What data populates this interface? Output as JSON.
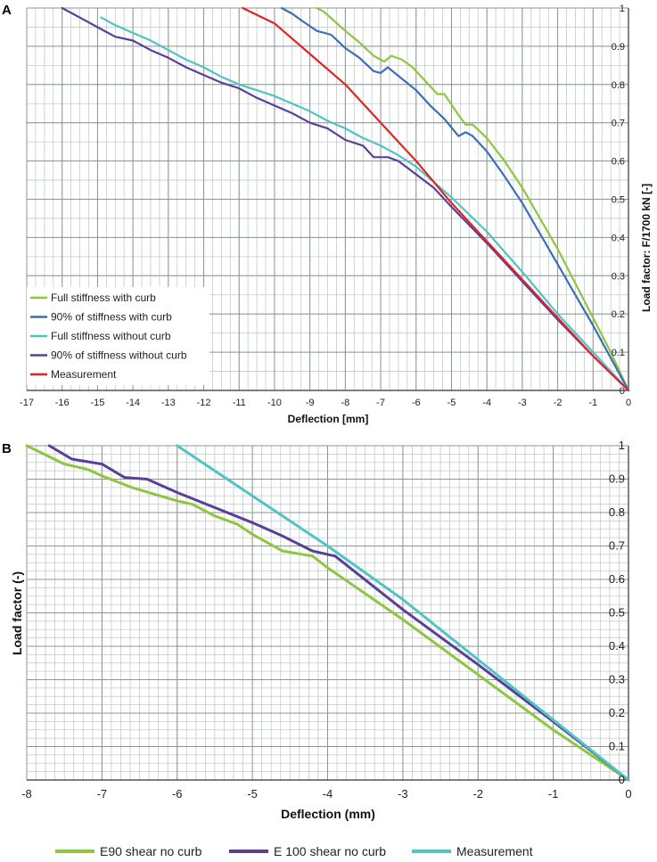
{
  "chart_data": [
    {
      "panel": "A",
      "type": "line",
      "xlabel": "Deflection [mm]",
      "ylabel": "Load factor: F/1700 kN [-]",
      "xlim": [
        -17,
        0
      ],
      "ylim": [
        0,
        1
      ],
      "x_ticks": [
        -17,
        -16,
        -15,
        -14,
        -13,
        -12,
        -11,
        -10,
        -9,
        -8,
        -7,
        -6,
        -5,
        -4,
        -3,
        -2,
        -1,
        0
      ],
      "y_ticks": [
        0,
        0.1,
        0.2,
        0.3,
        0.4,
        0.5,
        0.6,
        0.7,
        0.8,
        0.9,
        1
      ],
      "grid": true,
      "legend_position": "bottom-left",
      "series": [
        {
          "name": "Full stiffness with curb",
          "color": "#8dc63f",
          "x": [
            0,
            -0.5,
            -1,
            -1.5,
            -2,
            -2.5,
            -3,
            -3.5,
            -4,
            -4.4,
            -4.6,
            -4.8,
            -5.2,
            -5.4,
            -5.8,
            -6.1,
            -6.4,
            -6.7,
            -6.9,
            -7.2,
            -7.6,
            -8,
            -8.3,
            -8.6,
            -8.8
          ],
          "y": [
            0,
            0.1,
            0.19,
            0.28,
            0.37,
            0.45,
            0.53,
            0.6,
            0.66,
            0.695,
            0.695,
            0.72,
            0.775,
            0.775,
            0.815,
            0.845,
            0.865,
            0.875,
            0.86,
            0.875,
            0.91,
            0.94,
            0.965,
            0.99,
            1.0
          ]
        },
        {
          "name": "90% of stiffness with curb",
          "color": "#3a6fb8",
          "x": [
            0,
            -0.5,
            -1,
            -1.5,
            -2,
            -2.5,
            -3,
            -3.5,
            -4,
            -4.4,
            -4.6,
            -4.8,
            -5.2,
            -5.6,
            -6,
            -6.4,
            -6.8,
            -7,
            -7.2,
            -7.6,
            -8,
            -8.4,
            -8.8,
            -9.2,
            -9.5,
            -9.8
          ],
          "y": [
            0,
            0.085,
            0.17,
            0.25,
            0.33,
            0.41,
            0.49,
            0.56,
            0.625,
            0.665,
            0.675,
            0.665,
            0.71,
            0.745,
            0.785,
            0.815,
            0.845,
            0.83,
            0.835,
            0.87,
            0.895,
            0.93,
            0.94,
            0.965,
            0.985,
            1.0
          ]
        },
        {
          "name": "Full stiffness without curb",
          "color": "#4fc4c4",
          "x": [
            0,
            -1,
            -2,
            -3,
            -4,
            -5,
            -5.5,
            -6,
            -6.5,
            -7,
            -7.5,
            -8,
            -8.5,
            -9,
            -9.5,
            -10,
            -10.5,
            -11,
            -11.5,
            -12,
            -12.5,
            -13,
            -13.5,
            -14,
            -14.5,
            -14.9
          ],
          "y": [
            0,
            0.1,
            0.2,
            0.31,
            0.415,
            0.505,
            0.545,
            0.585,
            0.615,
            0.64,
            0.66,
            0.685,
            0.705,
            0.73,
            0.75,
            0.77,
            0.785,
            0.8,
            0.82,
            0.845,
            0.865,
            0.89,
            0.915,
            0.935,
            0.955,
            0.975
          ]
        },
        {
          "name": "90% of stiffness without curb",
          "color": "#5a3f99",
          "x": [
            0,
            -1,
            -2,
            -3,
            -4,
            -5,
            -5.5,
            -6,
            -6.5,
            -6.8,
            -7.2,
            -7.5,
            -8,
            -8.5,
            -9,
            -9.5,
            -10,
            -10.5,
            -11,
            -11.5,
            -12,
            -12.5,
            -13,
            -13.5,
            -14,
            -14.5,
            -15,
            -15.5,
            -16
          ],
          "y": [
            0,
            0.09,
            0.185,
            0.285,
            0.385,
            0.48,
            0.53,
            0.565,
            0.6,
            0.61,
            0.61,
            0.64,
            0.655,
            0.685,
            0.7,
            0.725,
            0.745,
            0.765,
            0.79,
            0.805,
            0.825,
            0.845,
            0.87,
            0.89,
            0.915,
            0.925,
            0.95,
            0.975,
            1.0
          ]
        },
        {
          "name": "Measurement",
          "color": "#e02424",
          "x": [
            0,
            -1,
            -2,
            -3,
            -4,
            -5,
            -6,
            -7,
            -8,
            -9,
            -10,
            -10.9
          ],
          "y": [
            0,
            0.09,
            0.19,
            0.29,
            0.39,
            0.49,
            0.6,
            0.7,
            0.8,
            0.88,
            0.96,
            1.0
          ]
        }
      ]
    },
    {
      "panel": "B",
      "type": "line",
      "xlabel": "Deflection (mm)",
      "ylabel": "Load factor (-)",
      "xlim": [
        -8,
        0
      ],
      "ylim": [
        0,
        1
      ],
      "x_ticks": [
        -8,
        -7,
        -6,
        -5,
        -4,
        -3,
        -2,
        -1,
        0
      ],
      "y_ticks": [
        0,
        0.1,
        0.2,
        0.3,
        0.4,
        0.5,
        0.6,
        0.7,
        0.8,
        0.9,
        1
      ],
      "grid": true,
      "legend_position": "bottom",
      "series": [
        {
          "name": "E90 shear no curb",
          "color": "#8dc63f",
          "x": [
            0,
            -1,
            -2,
            -3,
            -4,
            -4.2,
            -4.6,
            -5,
            -5.2,
            -5.5,
            -5.8,
            -6,
            -6.3,
            -6.6,
            -7,
            -7.2,
            -7.5,
            -8
          ],
          "y": [
            0,
            0.15,
            0.315,
            0.48,
            0.635,
            0.67,
            0.685,
            0.735,
            0.765,
            0.79,
            0.825,
            0.835,
            0.855,
            0.875,
            0.91,
            0.93,
            0.945,
            1.0
          ]
        },
        {
          "name": "E 100 shear no curb",
          "color": "#5a3f99",
          "x": [
            0,
            -1,
            -2,
            -3,
            -3.9,
            -4.2,
            -4.6,
            -5,
            -5.5,
            -6,
            -6.4,
            -6.7,
            -7,
            -7.4,
            -7.7
          ],
          "y": [
            0,
            0.175,
            0.345,
            0.51,
            0.67,
            0.685,
            0.73,
            0.77,
            0.815,
            0.86,
            0.9,
            0.905,
            0.945,
            0.96,
            1.0
          ]
        },
        {
          "name": "Measurement",
          "color": "#4fc4c4",
          "x": [
            0,
            -1,
            -2,
            -3,
            -4,
            -5,
            -6
          ],
          "y": [
            0,
            0.18,
            0.36,
            0.54,
            0.7,
            0.85,
            1.0
          ]
        }
      ]
    }
  ],
  "panel_labels": {
    "a": "A",
    "b": "B"
  }
}
